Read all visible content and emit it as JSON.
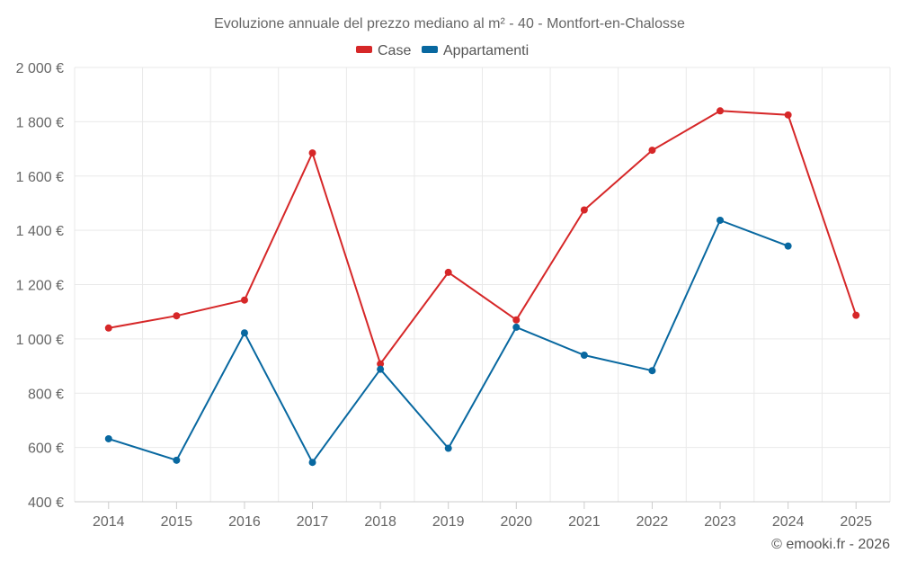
{
  "chart_data": {
    "type": "line",
    "title": "Evoluzione annuale del prezzo mediano al m² - 40 - Montfort-en-Chalosse",
    "x": [
      "2014",
      "2015",
      "2016",
      "2017",
      "2018",
      "2019",
      "2020",
      "2021",
      "2022",
      "2023",
      "2024",
      "2025"
    ],
    "ylim": [
      400,
      2000
    ],
    "yticks": [
      400,
      600,
      800,
      1000,
      1200,
      1400,
      1600,
      1800,
      2000
    ],
    "ytick_labels": [
      "400 €",
      "600 €",
      "800 €",
      "1 000 €",
      "1 200 €",
      "1 400 €",
      "1 600 €",
      "1 800 €",
      "2 000 €"
    ],
    "grid": true,
    "legend_position": "top-center",
    "series": [
      {
        "name": "Case",
        "color": "#d62728",
        "values": [
          1040,
          1085,
          1143,
          1685,
          908,
          1245,
          1070,
          1475,
          1695,
          1840,
          1825,
          1087
        ]
      },
      {
        "name": "Appartamenti",
        "color": "#0868a0",
        "values": [
          632,
          553,
          1022,
          545,
          888,
          597,
          1043,
          940,
          883,
          1437,
          1342,
          null
        ]
      }
    ],
    "credit": "© emooki.fr - 2026"
  }
}
